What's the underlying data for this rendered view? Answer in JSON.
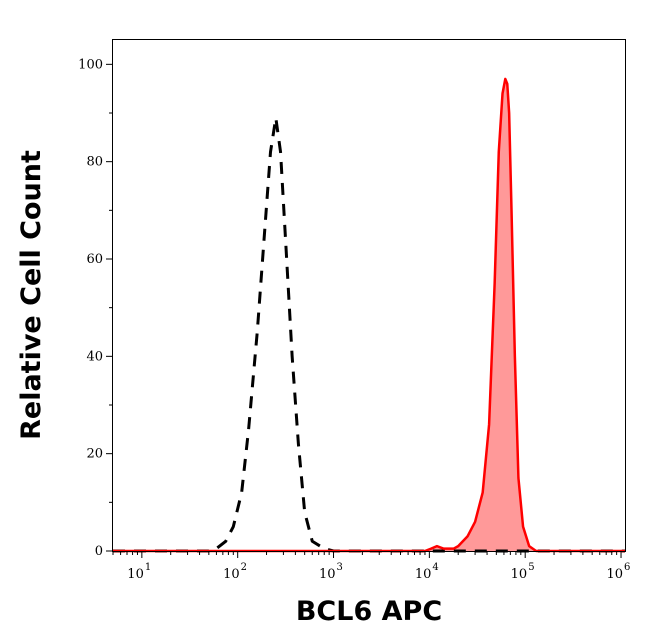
{
  "chart_data": {
    "type": "area",
    "title": "",
    "xlabel": "BCL6 APC",
    "ylabel": "Relative Cell Count",
    "x_scale": "log",
    "xlim": [
      5,
      1100000
    ],
    "ylim": [
      0,
      105
    ],
    "y_ticks": [
      0,
      20,
      40,
      60,
      80,
      100
    ],
    "y_tick_labels": [
      "0",
      "20",
      "40",
      "60",
      "80",
      "100"
    ],
    "x_ticks": [
      10,
      100,
      1000,
      10000,
      100000,
      1000000
    ],
    "x_tick_labels": [
      {
        "base": "10",
        "exp": "1"
      },
      {
        "base": "10",
        "exp": "2"
      },
      {
        "base": "10",
        "exp": "3"
      },
      {
        "base": "10",
        "exp": "4"
      },
      {
        "base": "10",
        "exp": "5"
      },
      {
        "base": "10",
        "exp": "6"
      }
    ],
    "grid": false,
    "legend": "none",
    "series": [
      {
        "style": "dashed",
        "color": "#000000",
        "filled": false,
        "x": [
          5,
          50,
          60,
          75,
          90,
          110,
          130,
          160,
          190,
          220,
          250,
          280,
          320,
          370,
          430,
          500,
          600,
          800,
          1000,
          5000,
          50000,
          1100000
        ],
        "y": [
          0,
          0,
          0.5,
          2,
          5,
          12,
          25,
          45,
          65,
          82,
          89,
          82,
          62,
          40,
          22,
          8,
          2,
          0.5,
          0,
          0,
          0,
          0
        ]
      },
      {
        "style": "solid",
        "color": "#ff0000",
        "fill": "#ff9999",
        "filled": true,
        "x": [
          5,
          5000,
          9000,
          10500,
          12000,
          14000,
          18000,
          20000,
          25000,
          30000,
          36000,
          42000,
          48000,
          53000,
          58000,
          62000,
          65000,
          68000,
          72000,
          78000,
          85000,
          95000,
          110000,
          130000,
          200000,
          1100000
        ],
        "y": [
          0,
          0,
          0,
          0.5,
          1,
          0.5,
          0.5,
          1,
          3,
          6,
          12,
          26,
          55,
          82,
          94,
          97,
          96,
          90,
          70,
          40,
          15,
          5,
          1,
          0,
          0,
          0
        ]
      }
    ]
  }
}
